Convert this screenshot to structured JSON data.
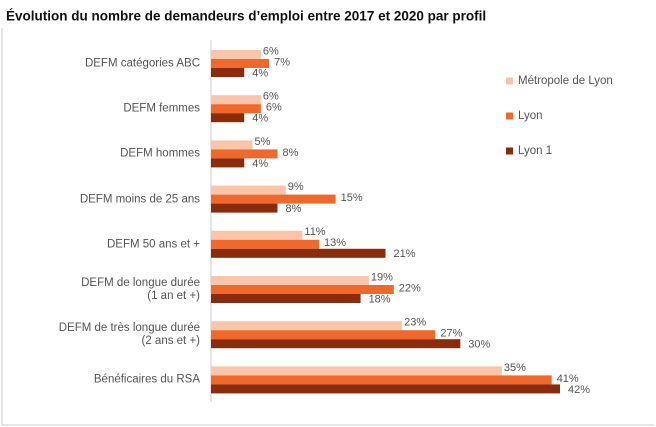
{
  "chart_data": {
    "type": "bar",
    "orientation": "horizontal",
    "title": "Évolution du nombre de demandeurs d’emploi entre 2017 et 2020 par profil",
    "categories": [
      "DEFM catégories ABC",
      "DEFM femmes",
      "DEFM hommes",
      "DEFM moins de 25 ans",
      "DEFM 50 ans et +",
      "DEFM de longue durée\n(1 an et +)",
      "DEFM de très longue durée\n(2 ans et +)",
      "Bénéficaires du RSA"
    ],
    "series": [
      {
        "name": "Métropole de Lyon",
        "color": "#f9c5ab",
        "values": [
          6,
          6,
          5,
          9,
          11,
          19,
          23,
          35
        ],
        "value_labels": [
          "6%",
          "6%",
          "5%",
          "9%",
          "11%",
          "19%",
          "23%",
          "35%"
        ]
      },
      {
        "name": "Lyon",
        "color": "#f0692c",
        "values": [
          7,
          6,
          8,
          15,
          13,
          22,
          27,
          41
        ],
        "value_labels": [
          "7%",
          "6%",
          "8%",
          "15%",
          "13%",
          "22%",
          "27%",
          "41%"
        ]
      },
      {
        "name": "Lyon 1",
        "color": "#8a2c0c",
        "values": [
          4,
          4,
          4,
          8,
          21,
          18,
          30,
          42
        ],
        "value_labels": [
          "4%",
          "4%",
          "4%",
          "8%",
          "21%",
          "18%",
          "30%",
          "42%"
        ]
      }
    ],
    "xlim": [
      0,
      42
    ],
    "legend": "right"
  }
}
